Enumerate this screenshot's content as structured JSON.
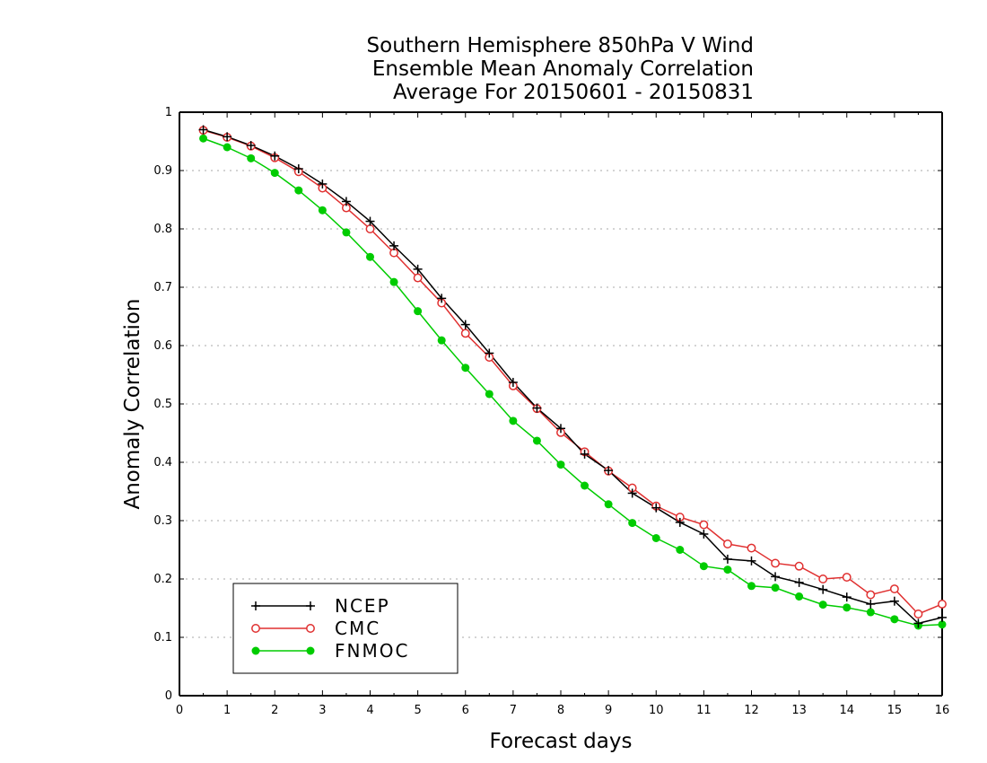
{
  "chart_data": {
    "type": "line",
    "title": [
      "Southern Hemisphere 850hPa V Wind",
      "Ensemble Mean Anomaly Correlation",
      "Average For 20150601 - 20150831"
    ],
    "xlabel": "Forecast days",
    "ylabel": "Anomaly Correlation",
    "xlim": [
      0,
      16
    ],
    "ylim": [
      0,
      1
    ],
    "xticks": [
      0,
      1,
      2,
      3,
      4,
      5,
      6,
      7,
      8,
      9,
      10,
      11,
      12,
      13,
      14,
      15,
      16
    ],
    "yticks": [
      0,
      0.1,
      0.2,
      0.3,
      0.4,
      0.5,
      0.6,
      0.7,
      0.8,
      0.9,
      1
    ],
    "ytick_labels": [
      "0",
      "0.1",
      "0.2",
      "0.3",
      "0.4",
      "0.5",
      "0.6",
      "0.7",
      "0.8",
      "0.9",
      "1"
    ],
    "grid": "horizontal dotted",
    "legend_position": "bottom-left",
    "x": [
      0.5,
      1,
      1.5,
      2,
      2.5,
      3,
      3.5,
      4,
      4.5,
      5,
      5.5,
      6,
      6.5,
      7,
      7.5,
      8,
      8.5,
      9,
      9.5,
      10,
      10.5,
      11,
      11.5,
      12,
      12.5,
      13,
      13.5,
      14,
      14.5,
      15,
      15.5,
      16
    ],
    "series": [
      {
        "name": "NCEP",
        "color": "#000000",
        "marker": "plus",
        "values": [
          0.97,
          0.958,
          0.943,
          0.925,
          0.903,
          0.877,
          0.847,
          0.813,
          0.771,
          0.731,
          0.681,
          0.636,
          0.587,
          0.537,
          0.493,
          0.458,
          0.414,
          0.386,
          0.347,
          0.322,
          0.297,
          0.277,
          0.234,
          0.231,
          0.204,
          0.194,
          0.182,
          0.169,
          0.157,
          0.162,
          0.124,
          0.134
        ]
      },
      {
        "name": "CMC",
        "color": "#e03030",
        "marker": "open-circle",
        "values": [
          0.969,
          0.957,
          0.942,
          0.922,
          0.898,
          0.87,
          0.836,
          0.8,
          0.759,
          0.716,
          0.673,
          0.621,
          0.58,
          0.531,
          0.492,
          0.451,
          0.418,
          0.385,
          0.356,
          0.325,
          0.306,
          0.293,
          0.26,
          0.253,
          0.227,
          0.222,
          0.2,
          0.203,
          0.173,
          0.183,
          0.14,
          0.157
        ]
      },
      {
        "name": "FNMOC",
        "color": "#00cc00",
        "marker": "filled-circle",
        "values": [
          0.955,
          0.94,
          0.921,
          0.896,
          0.866,
          0.832,
          0.794,
          0.752,
          0.709,
          0.659,
          0.609,
          0.562,
          0.517,
          0.471,
          0.437,
          0.396,
          0.36,
          0.328,
          0.296,
          0.27,
          0.25,
          0.222,
          0.216,
          0.188,
          0.185,
          0.17,
          0.156,
          0.151,
          0.143,
          0.131,
          0.12,
          0.122
        ]
      }
    ]
  }
}
